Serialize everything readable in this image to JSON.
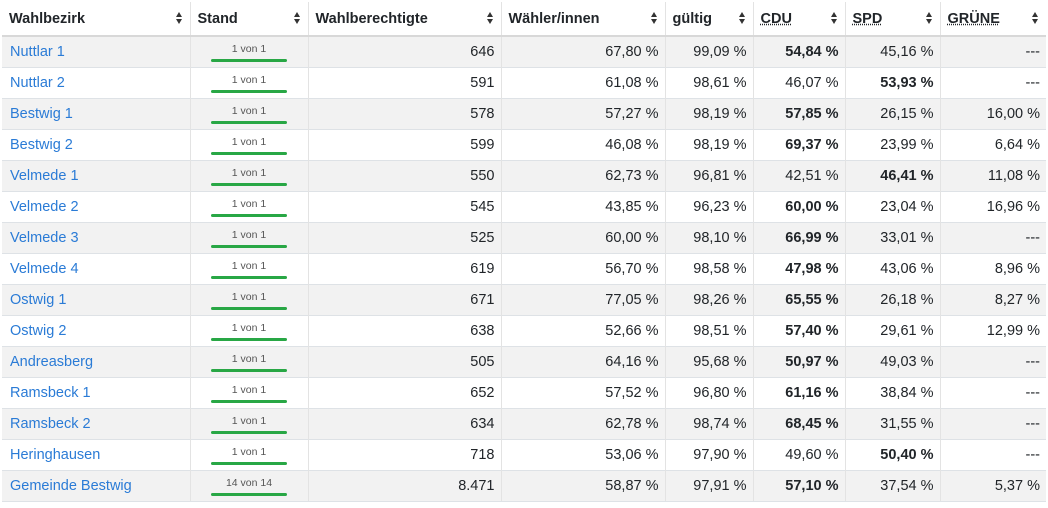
{
  "headers": [
    "Wahlbezirk",
    "Stand",
    "Wahlberechtigte",
    "Wähler/innen",
    "gültig",
    "CDU",
    "SPD",
    "GRÜNE"
  ],
  "rows": [
    {
      "name": "Nuttlar 1",
      "stand": "1 von 1",
      "progress": 1,
      "wahlberechtigte": "646",
      "waehler": "67,80 %",
      "gueltig": "99,09 %",
      "cdu": "54,84 %",
      "spd": "45,16 %",
      "gruene": "---",
      "winner": "cdu"
    },
    {
      "name": "Nuttlar 2",
      "stand": "1 von 1",
      "progress": 1,
      "wahlberechtigte": "591",
      "waehler": "61,08 %",
      "gueltig": "98,61 %",
      "cdu": "46,07 %",
      "spd": "53,93 %",
      "gruene": "---",
      "winner": "spd"
    },
    {
      "name": "Bestwig 1",
      "stand": "1 von 1",
      "progress": 1,
      "wahlberechtigte": "578",
      "waehler": "57,27 %",
      "gueltig": "98,19 %",
      "cdu": "57,85 %",
      "spd": "26,15 %",
      "gruene": "16,00 %",
      "winner": "cdu"
    },
    {
      "name": "Bestwig 2",
      "stand": "1 von 1",
      "progress": 1,
      "wahlberechtigte": "599",
      "waehler": "46,08 %",
      "gueltig": "98,19 %",
      "cdu": "69,37 %",
      "spd": "23,99 %",
      "gruene": "6,64 %",
      "winner": "cdu"
    },
    {
      "name": "Velmede 1",
      "stand": "1 von 1",
      "progress": 1,
      "wahlberechtigte": "550",
      "waehler": "62,73 %",
      "gueltig": "96,81 %",
      "cdu": "42,51 %",
      "spd": "46,41 %",
      "gruene": "11,08 %",
      "winner": "spd"
    },
    {
      "name": "Velmede 2",
      "stand": "1 von 1",
      "progress": 1,
      "wahlberechtigte": "545",
      "waehler": "43,85 %",
      "gueltig": "96,23 %",
      "cdu": "60,00 %",
      "spd": "23,04 %",
      "gruene": "16,96 %",
      "winner": "cdu"
    },
    {
      "name": "Velmede 3",
      "stand": "1 von 1",
      "progress": 1,
      "wahlberechtigte": "525",
      "waehler": "60,00 %",
      "gueltig": "98,10 %",
      "cdu": "66,99 %",
      "spd": "33,01 %",
      "gruene": "---",
      "winner": "cdu"
    },
    {
      "name": "Velmede 4",
      "stand": "1 von 1",
      "progress": 1,
      "wahlberechtigte": "619",
      "waehler": "56,70 %",
      "gueltig": "98,58 %",
      "cdu": "47,98 %",
      "spd": "43,06 %",
      "gruene": "8,96 %",
      "winner": "cdu"
    },
    {
      "name": "Ostwig 1",
      "stand": "1 von 1",
      "progress": 1,
      "wahlberechtigte": "671",
      "waehler": "77,05 %",
      "gueltig": "98,26 %",
      "cdu": "65,55 %",
      "spd": "26,18 %",
      "gruene": "8,27 %",
      "winner": "cdu"
    },
    {
      "name": "Ostwig 2",
      "stand": "1 von 1",
      "progress": 1,
      "wahlberechtigte": "638",
      "waehler": "52,66 %",
      "gueltig": "98,51 %",
      "cdu": "57,40 %",
      "spd": "29,61 %",
      "gruene": "12,99 %",
      "winner": "cdu"
    },
    {
      "name": "Andreasberg",
      "stand": "1 von 1",
      "progress": 1,
      "wahlberechtigte": "505",
      "waehler": "64,16 %",
      "gueltig": "95,68 %",
      "cdu": "50,97 %",
      "spd": "49,03 %",
      "gruene": "---",
      "winner": "cdu"
    },
    {
      "name": "Ramsbeck 1",
      "stand": "1 von 1",
      "progress": 1,
      "wahlberechtigte": "652",
      "waehler": "57,52 %",
      "gueltig": "96,80 %",
      "cdu": "61,16 %",
      "spd": "38,84 %",
      "gruene": "---",
      "winner": "cdu"
    },
    {
      "name": "Ramsbeck 2",
      "stand": "1 von 1",
      "progress": 1,
      "wahlberechtigte": "634",
      "waehler": "62,78 %",
      "gueltig": "98,74 %",
      "cdu": "68,45 %",
      "spd": "31,55 %",
      "gruene": "---",
      "winner": "cdu"
    },
    {
      "name": "Heringhausen",
      "stand": "1 von 1",
      "progress": 1,
      "wahlberechtigte": "718",
      "waehler": "53,06 %",
      "gueltig": "97,90 %",
      "cdu": "49,60 %",
      "spd": "50,40 %",
      "gruene": "---",
      "winner": "spd"
    },
    {
      "name": "Gemeinde Bestwig",
      "stand": "14 von 14",
      "progress": 1,
      "wahlberechtigte": "8.471",
      "waehler": "58,87 %",
      "gueltig": "97,91 %",
      "cdu": "57,10 %",
      "spd": "37,54 %",
      "gruene": "5,37 %",
      "winner": "cdu"
    }
  ],
  "colors": {
    "link": "#2a7bd6",
    "progress": "#28a745",
    "stripe": "#f2f2f2"
  }
}
